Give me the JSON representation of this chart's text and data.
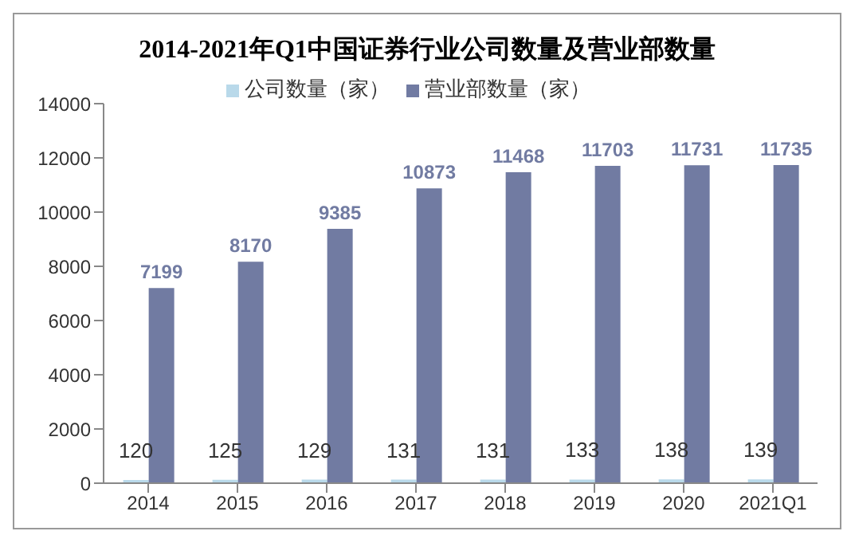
{
  "chart_data": {
    "type": "bar",
    "title": "2014-2021年Q1中国证券行业公司数量及营业部数量",
    "categories": [
      "2014",
      "2015",
      "2016",
      "2017",
      "2018",
      "2019",
      "2020",
      "2021Q1"
    ],
    "series": [
      {
        "name": "公司数量（家）",
        "color": "#b9d9ea",
        "values": [
          120,
          125,
          129,
          131,
          131,
          133,
          138,
          139
        ]
      },
      {
        "name": "营业部数量（家）",
        "color": "#717ba2",
        "values": [
          7199,
          8170,
          9385,
          10873,
          11468,
          11703,
          11731,
          11735
        ]
      }
    ],
    "ylim": [
      0,
      14000
    ],
    "yticks": [
      0,
      2000,
      4000,
      6000,
      8000,
      10000,
      12000,
      14000
    ],
    "grid": false,
    "legend": "top",
    "data_labels": true
  }
}
